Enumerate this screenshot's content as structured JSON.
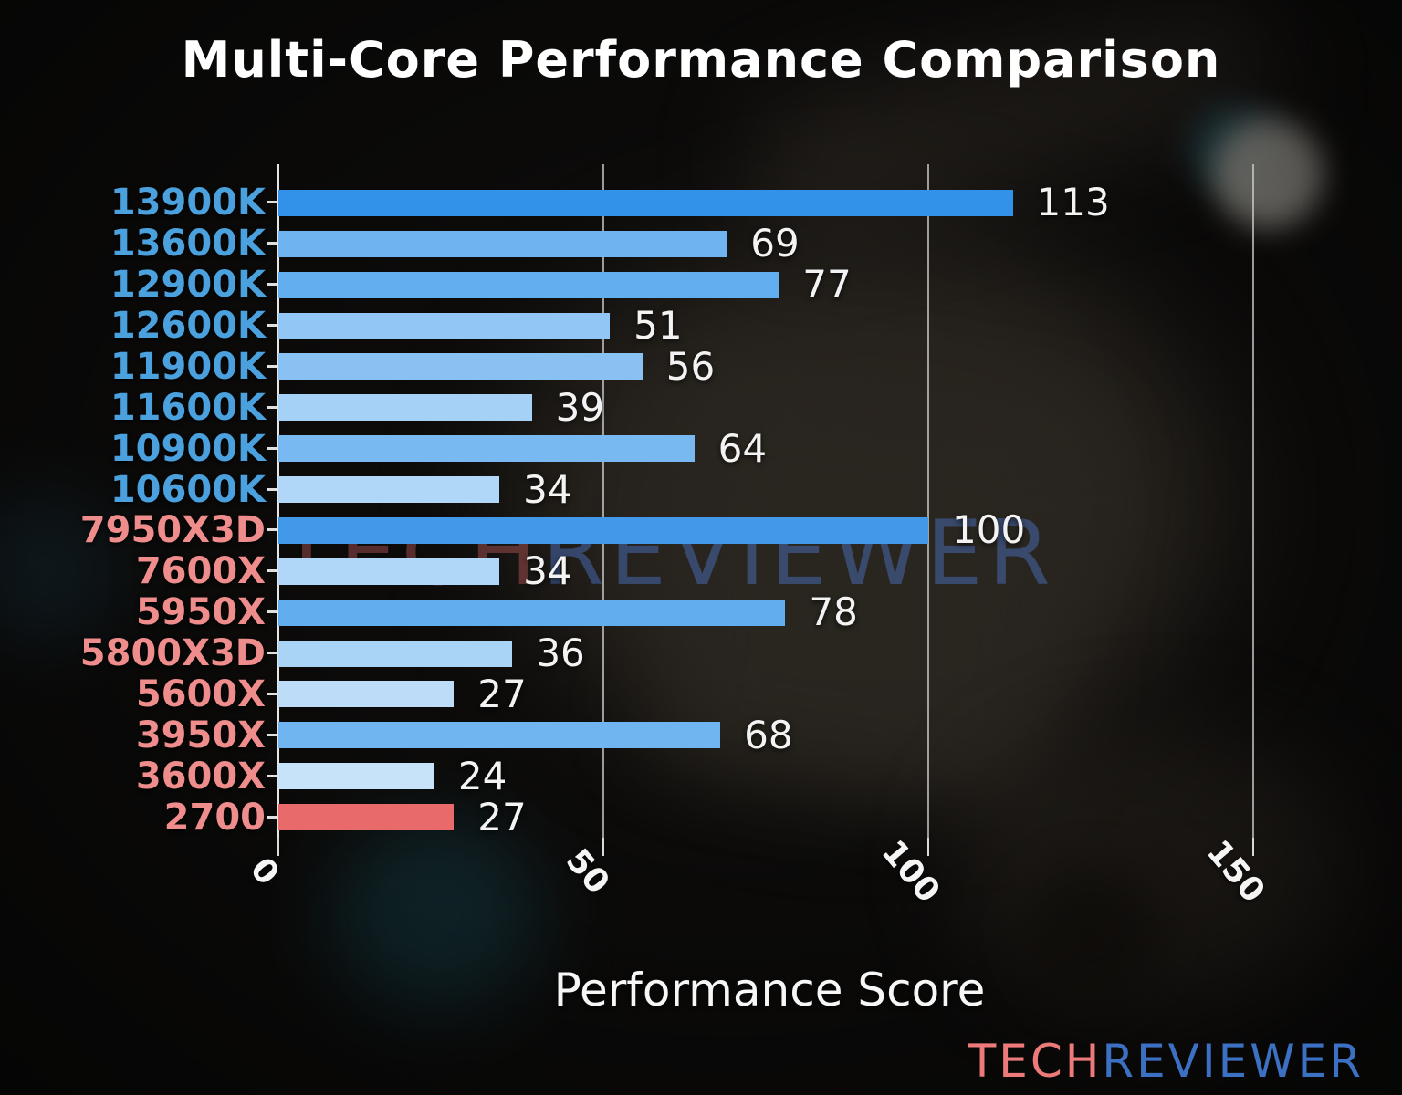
{
  "title": "Multi-Core Performance Comparison",
  "x_axis": {
    "label": "Performance Score",
    "ticks": [
      {
        "value": 0,
        "label": "0"
      },
      {
        "value": 50,
        "label": "50"
      },
      {
        "value": 100,
        "label": "100"
      },
      {
        "value": 150,
        "label": "150"
      }
    ]
  },
  "watermark": {
    "tech": "TECH",
    "reviewer": "REVIEWER"
  },
  "logo": {
    "tech": "TECH",
    "reviewer": "REVIEWER"
  },
  "colors": {
    "intel_label": "#4ba1de",
    "amd_label": "#ef8c8c",
    "logo_tech": "#ed7a7a",
    "logo_reviewer": "#3b70c3",
    "value_label": "#f3f3f3",
    "grid": "#d2d2d2"
  },
  "chart_data": {
    "type": "bar",
    "orientation": "horizontal",
    "title": "Multi-Core Performance Comparison",
    "xlabel": "Performance Score",
    "xlim": [
      0,
      155
    ],
    "xticks": [
      0,
      50,
      100,
      150
    ],
    "grid": true,
    "legend": false,
    "categories": [
      "13900K",
      "13600K",
      "12900K",
      "12600K",
      "11900K",
      "11600K",
      "10900K",
      "10600K",
      "7950X3D",
      "7600X",
      "5950X",
      "5800X3D",
      "5600X",
      "3950X",
      "3600X",
      "2700"
    ],
    "values": [
      113,
      69,
      77,
      51,
      56,
      39,
      64,
      34,
      100,
      34,
      78,
      36,
      27,
      68,
      24,
      27
    ],
    "bars": [
      {
        "label": "13900K",
        "value": 113,
        "brand": "intel",
        "bar_color": "#3292ea"
      },
      {
        "label": "13600K",
        "value": 69,
        "brand": "intel",
        "bar_color": "#6fb4f0"
      },
      {
        "label": "12900K",
        "value": 77,
        "brand": "intel",
        "bar_color": "#63aeef"
      },
      {
        "label": "12600K",
        "value": 51,
        "brand": "intel",
        "bar_color": "#92c6f4"
      },
      {
        "label": "11900K",
        "value": 56,
        "brand": "intel",
        "bar_color": "#8ac1f3"
      },
      {
        "label": "11600K",
        "value": 39,
        "brand": "intel",
        "bar_color": "#a5d1f6"
      },
      {
        "label": "10900K",
        "value": 64,
        "brand": "intel",
        "bar_color": "#79b9f1"
      },
      {
        "label": "10600K",
        "value": 34,
        "brand": "intel",
        "bar_color": "#b0d7f7"
      },
      {
        "label": "7950X3D",
        "value": 100,
        "brand": "amd",
        "bar_color": "#4299e9"
      },
      {
        "label": "7600X",
        "value": 34,
        "brand": "amd",
        "bar_color": "#b0d7f7"
      },
      {
        "label": "5950X",
        "value": 78,
        "brand": "amd",
        "bar_color": "#62adee"
      },
      {
        "label": "5800X3D",
        "value": 36,
        "brand": "amd",
        "bar_color": "#aad4f6"
      },
      {
        "label": "5600X",
        "value": 27,
        "brand": "amd",
        "bar_color": "#bcdcf8"
      },
      {
        "label": "3950X",
        "value": 68,
        "brand": "amd",
        "bar_color": "#70b4f0"
      },
      {
        "label": "3600X",
        "value": 24,
        "brand": "amd",
        "bar_color": "#c6e3f9"
      },
      {
        "label": "2700",
        "value": 27,
        "brand": "amd",
        "bar_color": "#e86a6a"
      }
    ]
  }
}
